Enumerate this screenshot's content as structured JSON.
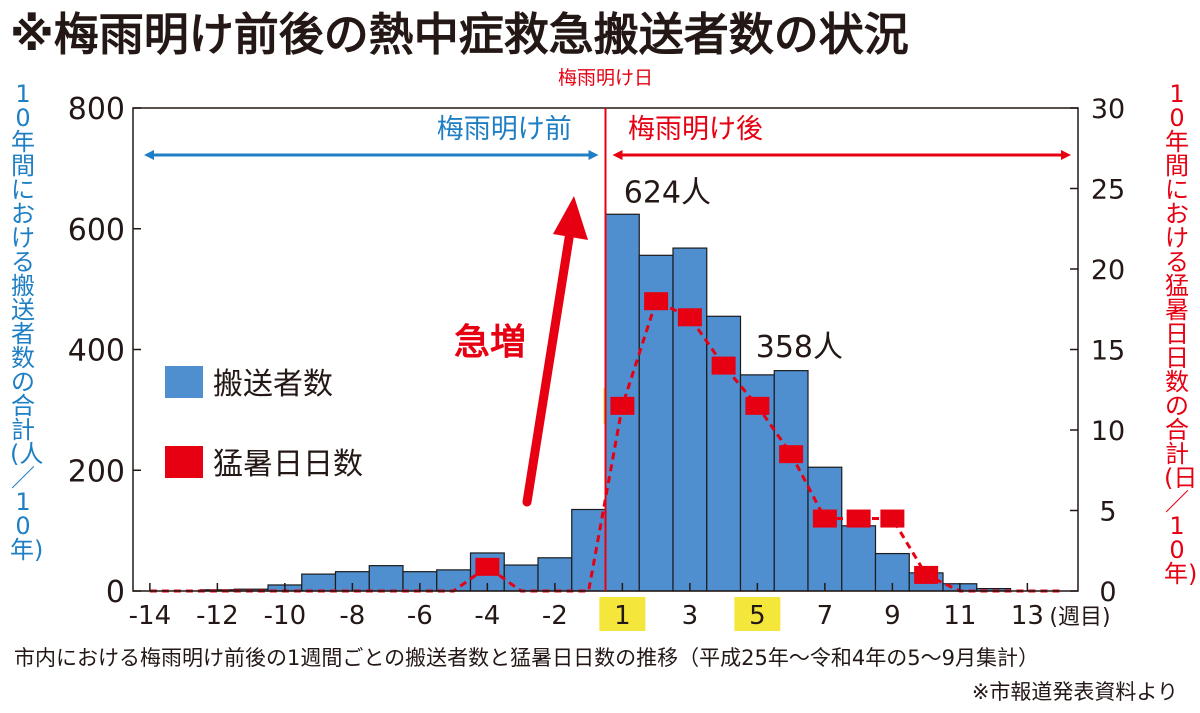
{
  "title": "※梅雨明け前後の熱中症救急搬送者数の状況",
  "caption": "市内における梅雨明け前後の1週間ごとの搬送者数と猛暑日日数の推移（平成25年～令和4年の5～9月集計）",
  "source": "※市報道発表資料より",
  "colors": {
    "bar": "#4f8fd0",
    "line": "#e60012",
    "blue_text": "#1f7fc4",
    "highlight": "#f5e63b"
  },
  "chart_data": {
    "type": "bar",
    "x": [
      -14,
      -13,
      -12,
      -11,
      -10,
      -9,
      -8,
      -7,
      -6,
      -5,
      -4,
      -3,
      -2,
      -1,
      1,
      2,
      3,
      4,
      5,
      6,
      7,
      8,
      9,
      10,
      11,
      12,
      13,
      14
    ],
    "series": [
      {
        "name": "搬送者数",
        "axis": "left",
        "type": "bar",
        "values": [
          0,
          0,
          2,
          3,
          10,
          28,
          32,
          42,
          32,
          35,
          63,
          43,
          55,
          135,
          624,
          556,
          568,
          455,
          358,
          365,
          205,
          108,
          62,
          30,
          12,
          4,
          0,
          0
        ]
      },
      {
        "name": "猛暑日日数",
        "axis": "right",
        "type": "line",
        "style": "dashed",
        "values": [
          0,
          0,
          0,
          0,
          0,
          0,
          0,
          0,
          0,
          0,
          1.5,
          0,
          0,
          0,
          11.5,
          18,
          17,
          14,
          11.5,
          8.5,
          4.5,
          4.5,
          4.5,
          1,
          0,
          0,
          0,
          0
        ]
      }
    ],
    "xtick_labels": [
      "-14",
      "-12",
      "-10",
      "-8",
      "-6",
      "-4",
      "-2",
      "1",
      "3",
      "5",
      "7",
      "9",
      "11",
      "13"
    ],
    "x_unit": "(週目)",
    "highlighted_ticks": [
      "1",
      "5"
    ],
    "ylim_left": [
      0,
      800
    ],
    "yticks_left": [
      "0",
      "200",
      "400",
      "600",
      "800"
    ],
    "ylim_right": [
      0,
      30
    ],
    "yticks_right": [
      "0",
      "5",
      "10",
      "15",
      "20",
      "25",
      "30"
    ],
    "ylabel_left": "10年間における搬送者数の合計(人／10年)",
    "ylabel_right": "10年間における猛暑日日数の合計(日／10年)",
    "divider_label": "梅雨明け日",
    "before_label": "梅雨明け前",
    "after_label": "梅雨明け後",
    "increase_label": "急増",
    "annotations": [
      "624人",
      "358人"
    ],
    "legend": [
      "搬送者数",
      "猛暑日日数"
    ],
    "grid": false
  }
}
